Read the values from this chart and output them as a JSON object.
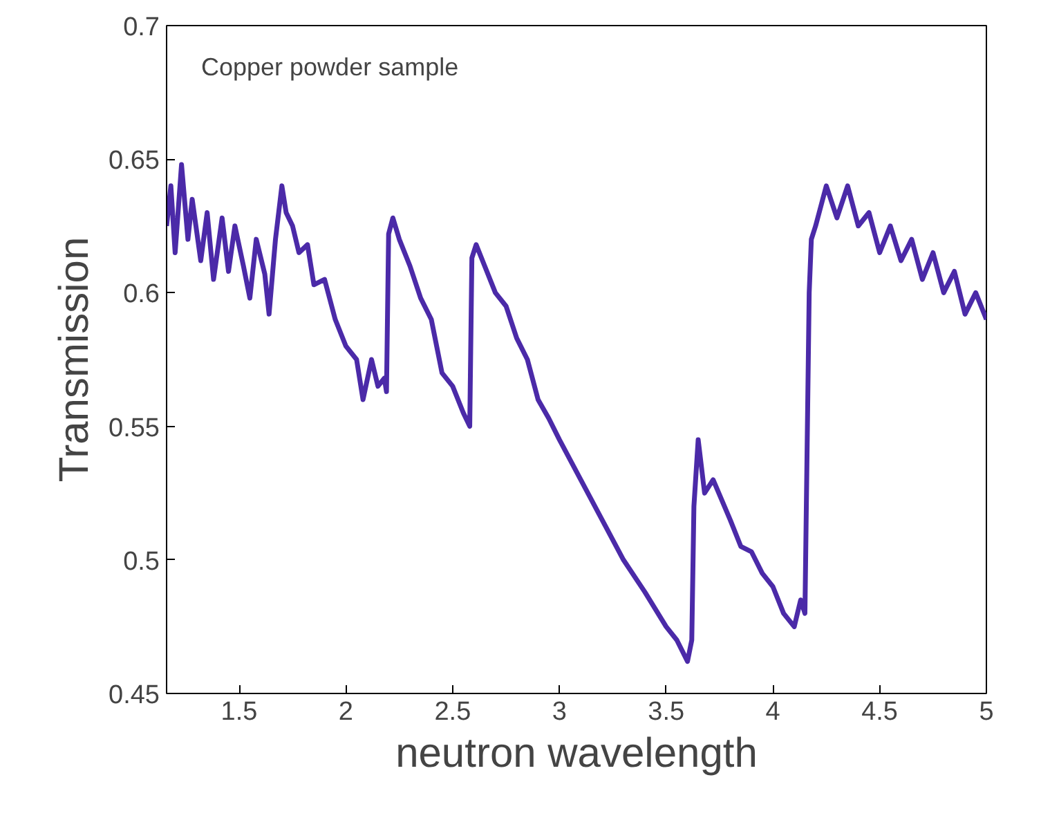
{
  "chart_data": {
    "type": "line",
    "xlabel": "neutron wavelength",
    "ylabel": "Transmission",
    "annotations": [
      "Copper powder sample"
    ],
    "xlim": [
      1.16,
      5
    ],
    "ylim": [
      0.45,
      0.7
    ],
    "xticks": [
      1.5,
      2,
      2.5,
      3,
      3.5,
      4,
      4.5,
      5
    ],
    "yticks": [
      0.45,
      0.5,
      0.55,
      0.6,
      0.65,
      0.7
    ],
    "line_style": "solid",
    "x": [
      1.16,
      1.18,
      1.2,
      1.23,
      1.26,
      1.28,
      1.32,
      1.35,
      1.38,
      1.42,
      1.45,
      1.48,
      1.52,
      1.55,
      1.58,
      1.62,
      1.64,
      1.67,
      1.7,
      1.72,
      1.75,
      1.78,
      1.82,
      1.85,
      1.9,
      1.95,
      2.0,
      2.05,
      2.08,
      2.12,
      2.15,
      2.18,
      2.19,
      2.2,
      2.22,
      2.25,
      2.3,
      2.35,
      2.4,
      2.45,
      2.5,
      2.55,
      2.58,
      2.59,
      2.61,
      2.65,
      2.7,
      2.75,
      2.8,
      2.85,
      2.9,
      2.95,
      3.0,
      3.1,
      3.2,
      3.3,
      3.4,
      3.5,
      3.55,
      3.6,
      3.62,
      3.63,
      3.65,
      3.68,
      3.72,
      3.8,
      3.85,
      3.9,
      3.95,
      4.0,
      4.05,
      4.1,
      4.13,
      4.15,
      4.17,
      4.18,
      4.2,
      4.25,
      4.3,
      4.35,
      4.4,
      4.45,
      4.5,
      4.55,
      4.6,
      4.65,
      4.7,
      4.75,
      4.8,
      4.85,
      4.9,
      4.95,
      5.0
    ],
    "series": [
      {
        "color": "#4b2aa8",
        "values": [
          0.625,
          0.64,
          0.615,
          0.648,
          0.62,
          0.635,
          0.612,
          0.63,
          0.605,
          0.628,
          0.608,
          0.625,
          0.61,
          0.598,
          0.62,
          0.607,
          0.592,
          0.62,
          0.64,
          0.63,
          0.625,
          0.615,
          0.618,
          0.603,
          0.605,
          0.59,
          0.58,
          0.575,
          0.56,
          0.575,
          0.565,
          0.568,
          0.563,
          0.622,
          0.628,
          0.62,
          0.61,
          0.598,
          0.59,
          0.57,
          0.565,
          0.555,
          0.55,
          0.613,
          0.618,
          0.61,
          0.6,
          0.595,
          0.583,
          0.575,
          0.56,
          0.553,
          0.545,
          0.53,
          0.515,
          0.5,
          0.488,
          0.475,
          0.47,
          0.462,
          0.47,
          0.52,
          0.545,
          0.525,
          0.53,
          0.515,
          0.505,
          0.503,
          0.495,
          0.49,
          0.48,
          0.475,
          0.485,
          0.48,
          0.6,
          0.62,
          0.625,
          0.64,
          0.628,
          0.64,
          0.625,
          0.63,
          0.615,
          0.625,
          0.612,
          0.62,
          0.605,
          0.615,
          0.6,
          0.608,
          0.592,
          0.6,
          0.59
        ]
      }
    ]
  }
}
